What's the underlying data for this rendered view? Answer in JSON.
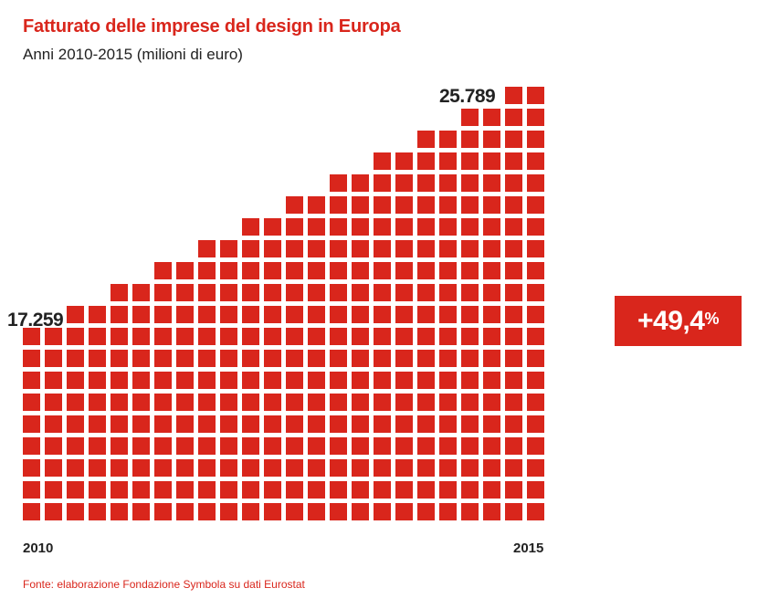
{
  "chart_data": {
    "type": "pictogram-bar",
    "title": "Fatturato delle imprese del design in Europa",
    "subtitle": "Anni 2010-2015 (milioni di euro)",
    "x_tick_labels": [
      "2010",
      "2015"
    ],
    "start_value_label": "17.259",
    "end_value_label": "25.789",
    "values": [
      {
        "year": 2010,
        "value": 17259
      },
      {
        "year": 2015,
        "value": 25789
      }
    ],
    "column_square_counts": [
      9,
      9,
      10,
      10,
      11,
      11,
      12,
      12,
      13,
      13,
      14,
      14,
      15,
      15,
      16,
      16,
      17,
      17,
      18,
      18,
      19,
      19,
      20,
      20
    ],
    "change_badge": {
      "value": "+49,4",
      "unit": "%"
    },
    "source": "Fonte: elaborazione Fondazione Symbola su dati Eurostat",
    "colors": {
      "accent": "#d9261c",
      "text": "#222222"
    }
  }
}
